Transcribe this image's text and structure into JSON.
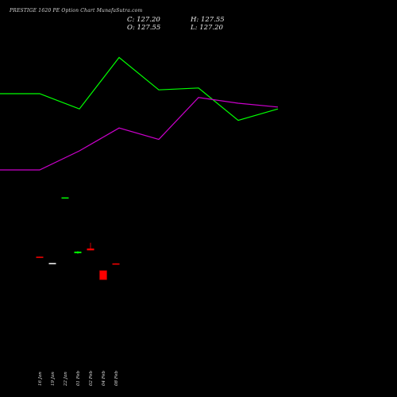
{
  "header": {
    "title": "PRESTIGE 1620 PE Option Chart MunafaSutra.com",
    "close_label": "C: 127.20",
    "open_label": "O: 127.55",
    "high_label": "H: 127.55",
    "low_label": "L: 127.20"
  },
  "colors": {
    "background": "#000000",
    "line_top": "#00ff00",
    "line_bottom": "#cc00cc",
    "candle_up": "#00ff00",
    "candle_down": "#ff0000",
    "candle_neutral": "#ffffff"
  },
  "chart_data": {
    "type": "candlestick",
    "x_labels": [
      "16 Jan",
      "19 Jan",
      "22 Jan",
      "01 Feb",
      "02 Feb",
      "04 Feb",
      "08 Feb"
    ],
    "candles": [
      {
        "date": "16 Jan",
        "open": 142.0,
        "high": 142.0,
        "low": 141.6,
        "close": 141.6,
        "color": "down"
      },
      {
        "date": "19 Jan",
        "open": 138.2,
        "high": 138.2,
        "low": 138.2,
        "close": 138.2,
        "color": "neutral"
      },
      {
        "date": "22 Jan",
        "open": 178.3,
        "high": 178.3,
        "low": 178.3,
        "close": 178.3,
        "color": "up"
      },
      {
        "date": "01 Feb",
        "open": 144.2,
        "high": 145.4,
        "low": 143.8,
        "close": 145.1,
        "color": "up"
      },
      {
        "date": "02 Feb",
        "open": 147.0,
        "high": 150.5,
        "low": 145.9,
        "close": 145.9,
        "color": "down"
      },
      {
        "date": "04 Feb",
        "open": 133.5,
        "high": 133.5,
        "low": 127.9,
        "close": 127.9,
        "color": "down"
      },
      {
        "date": "08 Feb",
        "open": 137.9,
        "high": 137.9,
        "low": 137.4,
        "close": 137.4,
        "color": "down"
      }
    ],
    "series": [
      {
        "values": [
          70,
          70,
          62,
          89,
          72,
          73,
          56,
          62
        ],
        "color": "#00ff00"
      },
      {
        "values": [
          30,
          30,
          40,
          52,
          46,
          68,
          65,
          63
        ],
        "color": "#cc00cc"
      }
    ],
    "line_x": [
      "",
      "16 Jan",
      "19 Jan",
      "22 Jan",
      "01 Feb",
      "02 Feb",
      "04 Feb",
      "08 Feb"
    ],
    "grid": false
  }
}
